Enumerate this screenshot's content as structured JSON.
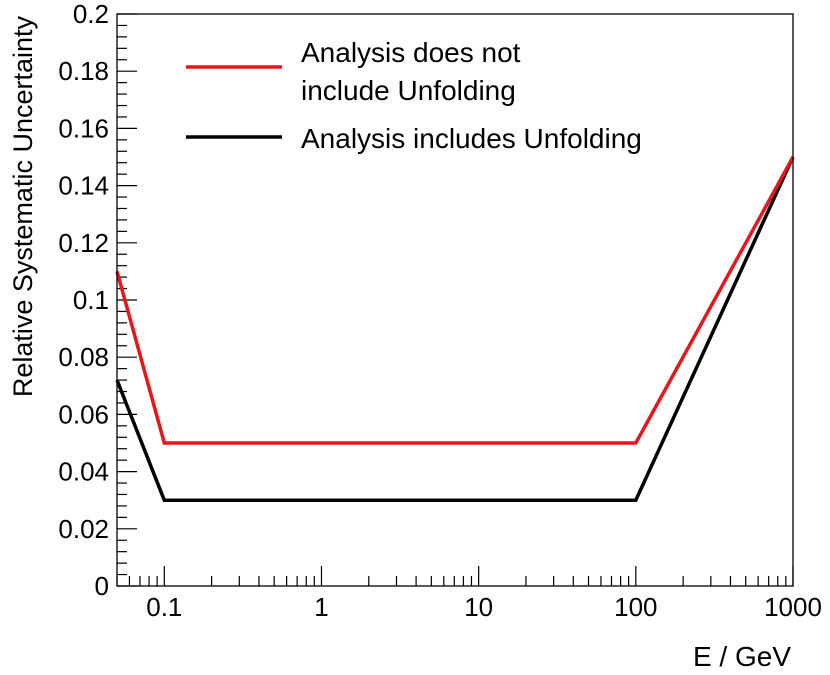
{
  "chart_data": {
    "type": "line",
    "xlabel": "E / GeV",
    "ylabel": "Relative Systematic Uncertainty",
    "xscale": "log",
    "xlim": [
      0.05,
      1000
    ],
    "ylim": [
      0,
      0.2
    ],
    "x_ticks": [
      0.1,
      1,
      10,
      100,
      1000
    ],
    "x_tick_labels": [
      "0.1",
      "1",
      "10",
      "100",
      "1000"
    ],
    "y_ticks": [
      0,
      0.02,
      0.04,
      0.06,
      0.08,
      0.1,
      0.12,
      0.14,
      0.16,
      0.18,
      0.2
    ],
    "y_tick_labels": [
      "0",
      "0.02",
      "0.04",
      "0.06",
      "0.08",
      "0.1",
      "0.12",
      "0.14",
      "0.16",
      "0.18",
      "0.2"
    ],
    "grid": false,
    "legend_position": "top-left",
    "series": [
      {
        "name": "Analysis does not include Unfolding",
        "legend_lines": [
          "Analysis does not",
          "include Unfolding"
        ],
        "color": "#e8151b",
        "x": [
          0.05,
          0.1,
          100,
          1000
        ],
        "y": [
          0.11,
          0.05,
          0.05,
          0.15
        ]
      },
      {
        "name": "Analysis includes Unfolding",
        "legend_lines": [
          "Analysis includes Unfolding"
        ],
        "color": "#000000",
        "x": [
          0.05,
          0.1,
          100,
          1000
        ],
        "y": [
          0.072,
          0.03,
          0.03,
          0.15
        ]
      }
    ]
  }
}
